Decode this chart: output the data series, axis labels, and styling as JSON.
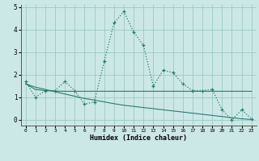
{
  "xlabel": "Humidex (Indice chaleur)",
  "x_values": [
    0,
    1,
    2,
    3,
    4,
    5,
    6,
    7,
    8,
    9,
    10,
    11,
    12,
    13,
    14,
    15,
    16,
    17,
    18,
    19,
    20,
    21,
    22,
    23
  ],
  "main_line": [
    1.7,
    1.0,
    1.3,
    1.3,
    1.7,
    1.3,
    0.7,
    0.8,
    2.6,
    4.3,
    4.8,
    3.9,
    3.3,
    1.5,
    2.2,
    2.1,
    1.6,
    1.3,
    1.3,
    1.35,
    0.45,
    0.0,
    0.45,
    0.05
  ],
  "trend1": [
    1.6,
    1.35,
    1.3,
    1.28,
    1.27,
    1.27,
    1.27,
    1.27,
    1.27,
    1.27,
    1.27,
    1.27,
    1.27,
    1.27,
    1.27,
    1.27,
    1.27,
    1.27,
    1.27,
    1.27,
    1.27,
    1.27,
    1.27,
    1.27
  ],
  "trend2": [
    1.6,
    1.45,
    1.35,
    1.25,
    1.15,
    1.05,
    0.95,
    0.88,
    0.8,
    0.72,
    0.65,
    0.6,
    0.55,
    0.5,
    0.45,
    0.4,
    0.35,
    0.3,
    0.25,
    0.2,
    0.15,
    0.1,
    0.05,
    0.02
  ],
  "line_color": "#2a7a6e",
  "bg_color": "#cce8e6",
  "grid_color": "#9dc8c5",
  "ylim": [
    -0.25,
    5.1
  ],
  "xlim": [
    -0.5,
    23.5
  ],
  "yticks": [
    0,
    1,
    2,
    3,
    4,
    5
  ],
  "xticks": [
    0,
    1,
    2,
    3,
    4,
    5,
    6,
    7,
    8,
    9,
    10,
    11,
    12,
    13,
    14,
    15,
    16,
    17,
    18,
    19,
    20,
    21,
    22,
    23
  ]
}
